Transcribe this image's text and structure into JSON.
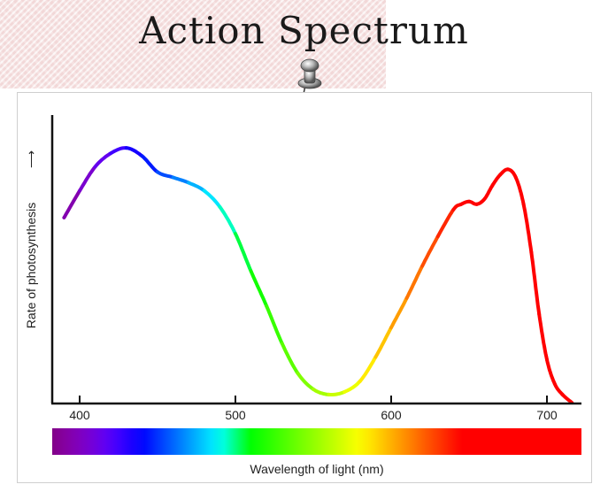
{
  "slide": {
    "title": "Action Spectrum"
  },
  "icons": {
    "pin": "pushpin-icon"
  },
  "colors": {
    "axis": "#111111",
    "title": "#1a1a1a",
    "paper": "#f6e6e6"
  },
  "chart_data": {
    "type": "line",
    "title": "",
    "xlabel": "Wavelength of light (nm)",
    "ylabel": "Rate of photosynthesis",
    "ylabel_arrow": "⟶",
    "xlim": [
      390,
      720
    ],
    "ylim": [
      0,
      1
    ],
    "y_ticks_shown": false,
    "xticks": [
      400,
      500,
      600,
      700
    ],
    "xtick_labels": [
      "400",
      "500",
      "600",
      "700"
    ],
    "grid": false,
    "line_colored_by_wavelength": true,
    "color_bar": true,
    "series": [
      {
        "x": [
          390,
          400,
          410,
          420,
          430,
          440,
          450,
          460,
          470,
          480,
          490,
          500,
          510,
          520,
          530,
          540,
          550,
          560,
          570,
          580,
          590,
          600,
          610,
          620,
          630,
          640,
          645,
          650,
          655,
          660,
          665,
          670,
          675,
          680,
          685,
          690,
          695,
          700,
          705,
          710,
          716
        ],
        "y": [
          0.69,
          0.79,
          0.88,
          0.93,
          0.95,
          0.92,
          0.86,
          0.84,
          0.82,
          0.79,
          0.73,
          0.63,
          0.49,
          0.36,
          0.22,
          0.11,
          0.05,
          0.03,
          0.04,
          0.08,
          0.17,
          0.28,
          0.39,
          0.51,
          0.62,
          0.72,
          0.74,
          0.75,
          0.74,
          0.76,
          0.81,
          0.85,
          0.87,
          0.84,
          0.74,
          0.56,
          0.33,
          0.16,
          0.07,
          0.03,
          0.0
        ]
      }
    ]
  }
}
